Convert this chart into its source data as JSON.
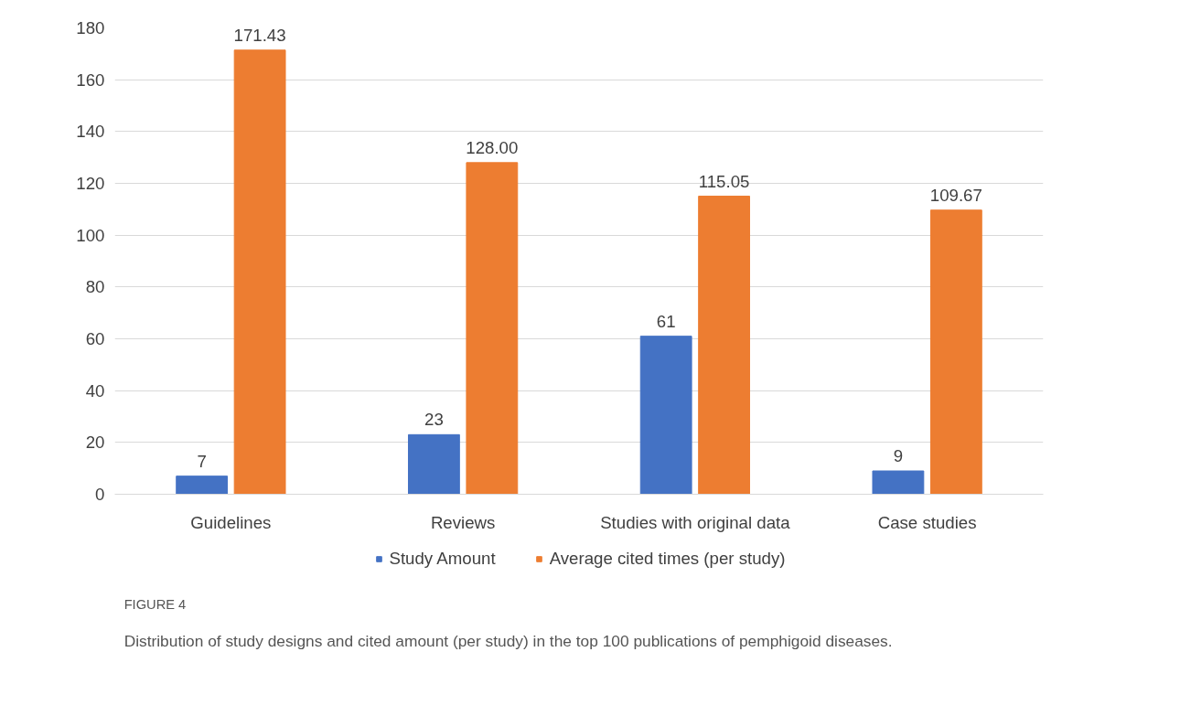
{
  "chart_data": {
    "type": "bar",
    "categories": [
      "Guidelines",
      "Reviews",
      "Studies with original data",
      "Case studies"
    ],
    "series": [
      {
        "name": "Study Amount",
        "color": "#4472c4",
        "values": [
          7,
          23,
          61,
          9
        ],
        "value_labels": [
          "7",
          "23",
          "61",
          "9"
        ]
      },
      {
        "name": "Average cited times (per study)",
        "color": "#ed7d31",
        "values": [
          171.43,
          128.0,
          115.05,
          109.67
        ],
        "value_labels": [
          "171.43",
          "128.00",
          "115.05",
          "109.67"
        ]
      }
    ],
    "ylim": [
      0,
      180
    ],
    "yticks": [
      0,
      20,
      40,
      60,
      80,
      100,
      120,
      140,
      160,
      180
    ],
    "grid": "y",
    "legend": "bottom",
    "annotations": [
      "FIGURE 4",
      "Distribution of study designs and cited amount (per study) in the top 100 publications of pemphigoid diseases."
    ]
  }
}
